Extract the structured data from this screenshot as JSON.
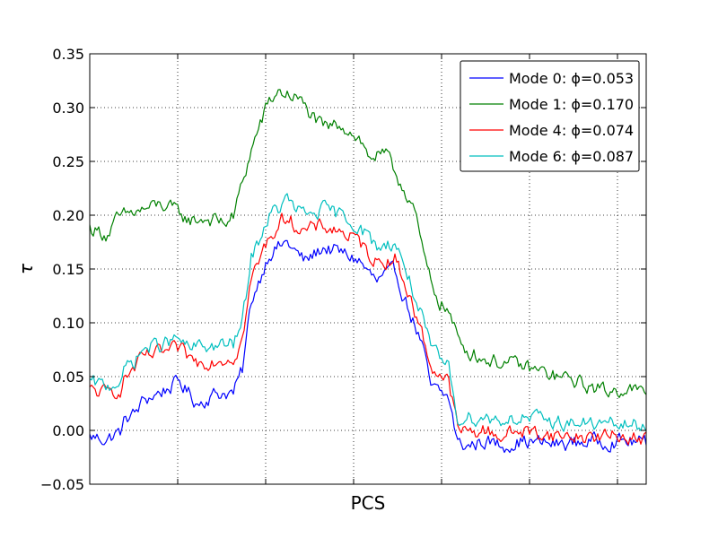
{
  "chart_data": {
    "type": "line",
    "title": "",
    "xlabel": "PCS",
    "ylabel": "τ",
    "ylim": [
      -0.05,
      0.35
    ],
    "xlim": [
      0,
      310
    ],
    "yticks": [
      -0.05,
      0.0,
      0.05,
      0.1,
      0.15,
      0.2,
      0.25,
      0.3,
      0.35
    ],
    "ytick_labels": [
      "−0.05",
      "0.00",
      "0.05",
      "0.10",
      "0.15",
      "0.20",
      "0.25",
      "0.30",
      "0.35"
    ],
    "xticks": [
      49,
      98,
      147,
      196,
      245,
      294
    ],
    "xtick_labels": [
      "",
      "",
      "",
      "",
      "",
      ""
    ],
    "grid": true,
    "legend_placement": "top-right",
    "series": [
      {
        "name": "Mode 0: ϕ=0.053",
        "color": "#0000ff",
        "anchors": [
          [
            0,
            -0.006
          ],
          [
            10,
            -0.008
          ],
          [
            18,
            0.0
          ],
          [
            20,
            0.012
          ],
          [
            25,
            0.015
          ],
          [
            30,
            0.028
          ],
          [
            40,
            0.036
          ],
          [
            50,
            0.045
          ],
          [
            55,
            0.035
          ],
          [
            60,
            0.025
          ],
          [
            70,
            0.034
          ],
          [
            75,
            0.035
          ],
          [
            80,
            0.035
          ],
          [
            85,
            0.055
          ],
          [
            90,
            0.12
          ],
          [
            100,
            0.165
          ],
          [
            105,
            0.17
          ],
          [
            110,
            0.175
          ],
          [
            115,
            0.165
          ],
          [
            120,
            0.157
          ],
          [
            130,
            0.17
          ],
          [
            140,
            0.165
          ],
          [
            150,
            0.158
          ],
          [
            155,
            0.147
          ],
          [
            160,
            0.138
          ],
          [
            170,
            0.148
          ],
          [
            175,
            0.125
          ],
          [
            185,
            0.08
          ],
          [
            190,
            0.04
          ],
          [
            200,
            0.03
          ],
          [
            205,
            -0.012
          ],
          [
            210,
            -0.015
          ],
          [
            220,
            -0.01
          ],
          [
            230,
            -0.014
          ],
          [
            240,
            -0.01
          ],
          [
            260,
            -0.013
          ],
          [
            280,
            -0.01
          ],
          [
            300,
            -0.01
          ],
          [
            310,
            -0.012
          ]
        ],
        "noise": 0.006
      },
      {
        "name": "Mode 1: ϕ=0.170",
        "color": "#008000",
        "anchors": [
          [
            0,
            0.188
          ],
          [
            10,
            0.182
          ],
          [
            15,
            0.195
          ],
          [
            20,
            0.2
          ],
          [
            30,
            0.205
          ],
          [
            40,
            0.21
          ],
          [
            50,
            0.202
          ],
          [
            55,
            0.195
          ],
          [
            65,
            0.197
          ],
          [
            75,
            0.193
          ],
          [
            80,
            0.198
          ],
          [
            85,
            0.23
          ],
          [
            90,
            0.26
          ],
          [
            95,
            0.285
          ],
          [
            100,
            0.305
          ],
          [
            105,
            0.315
          ],
          [
            110,
            0.312
          ],
          [
            115,
            0.31
          ],
          [
            125,
            0.29
          ],
          [
            130,
            0.28
          ],
          [
            140,
            0.285
          ],
          [
            150,
            0.272
          ],
          [
            155,
            0.255
          ],
          [
            165,
            0.255
          ],
          [
            170,
            0.24
          ],
          [
            180,
            0.21
          ],
          [
            185,
            0.17
          ],
          [
            190,
            0.137
          ],
          [
            195,
            0.12
          ],
          [
            200,
            0.11
          ],
          [
            205,
            0.085
          ],
          [
            210,
            0.075
          ],
          [
            220,
            0.066
          ],
          [
            240,
            0.06
          ],
          [
            250,
            0.055
          ],
          [
            260,
            0.05
          ],
          [
            270,
            0.046
          ],
          [
            280,
            0.04
          ],
          [
            290,
            0.036
          ],
          [
            300,
            0.04
          ],
          [
            310,
            0.033
          ]
        ],
        "noise": 0.006
      },
      {
        "name": "Mode 4: ϕ=0.074",
        "color": "#ff0000",
        "anchors": [
          [
            0,
            0.037
          ],
          [
            10,
            0.034
          ],
          [
            18,
            0.04
          ],
          [
            20,
            0.05
          ],
          [
            25,
            0.058
          ],
          [
            30,
            0.068
          ],
          [
            40,
            0.072
          ],
          [
            50,
            0.075
          ],
          [
            55,
            0.068
          ],
          [
            60,
            0.063
          ],
          [
            70,
            0.066
          ],
          [
            80,
            0.068
          ],
          [
            85,
            0.085
          ],
          [
            90,
            0.14
          ],
          [
            100,
            0.18
          ],
          [
            105,
            0.19
          ],
          [
            110,
            0.2
          ],
          [
            115,
            0.19
          ],
          [
            120,
            0.185
          ],
          [
            130,
            0.19
          ],
          [
            140,
            0.185
          ],
          [
            150,
            0.175
          ],
          [
            155,
            0.165
          ],
          [
            160,
            0.157
          ],
          [
            170,
            0.16
          ],
          [
            175,
            0.14
          ],
          [
            185,
            0.09
          ],
          [
            190,
            0.06
          ],
          [
            200,
            0.045
          ],
          [
            205,
            0.002
          ],
          [
            210,
            -0.002
          ],
          [
            220,
            0.0
          ],
          [
            230,
            -0.005
          ],
          [
            240,
            0.0
          ],
          [
            260,
            -0.005
          ],
          [
            280,
            -0.006
          ],
          [
            300,
            -0.005
          ],
          [
            310,
            -0.008
          ]
        ],
        "noise": 0.006
      },
      {
        "name": "Mode 6: ϕ=0.087",
        "color": "#00bfbf",
        "anchors": [
          [
            0,
            0.044
          ],
          [
            10,
            0.041
          ],
          [
            18,
            0.048
          ],
          [
            20,
            0.058
          ],
          [
            25,
            0.065
          ],
          [
            30,
            0.076
          ],
          [
            40,
            0.08
          ],
          [
            50,
            0.085
          ],
          [
            55,
            0.075
          ],
          [
            60,
            0.078
          ],
          [
            70,
            0.078
          ],
          [
            80,
            0.08
          ],
          [
            85,
            0.1
          ],
          [
            90,
            0.16
          ],
          [
            100,
            0.2
          ],
          [
            105,
            0.205
          ],
          [
            110,
            0.215
          ],
          [
            115,
            0.205
          ],
          [
            120,
            0.2
          ],
          [
            130,
            0.205
          ],
          [
            140,
            0.2
          ],
          [
            150,
            0.19
          ],
          [
            155,
            0.18
          ],
          [
            160,
            0.17
          ],
          [
            170,
            0.175
          ],
          [
            175,
            0.155
          ],
          [
            185,
            0.105
          ],
          [
            190,
            0.075
          ],
          [
            200,
            0.058
          ],
          [
            205,
            0.012
          ],
          [
            210,
            0.012
          ],
          [
            220,
            0.012
          ],
          [
            230,
            0.01
          ],
          [
            240,
            0.012
          ],
          [
            260,
            0.008
          ],
          [
            280,
            0.006
          ],
          [
            300,
            0.005
          ],
          [
            310,
            0.003
          ]
        ],
        "noise": 0.006
      }
    ]
  }
}
